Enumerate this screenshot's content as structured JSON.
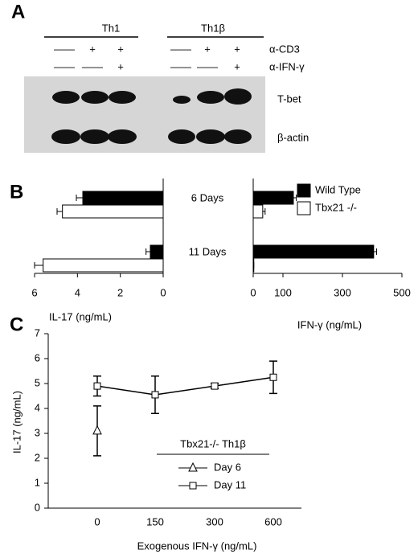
{
  "panel_labels": [
    "A",
    "B",
    "C"
  ],
  "blot": {
    "groups": [
      "Th1",
      "Th1β"
    ],
    "rows": [
      {
        "label": "α-CD3",
        "marks": [
          "——",
          "+",
          "+",
          "——",
          "+",
          "+"
        ]
      },
      {
        "label": "α-IFN-γ",
        "marks": [
          "——",
          "——",
          "+",
          "——",
          "——",
          "+"
        ]
      }
    ],
    "bands": [
      "T-bet",
      "β-actin"
    ]
  },
  "chart_data": [
    {
      "type": "paired-bar",
      "categories": [
        "6 Days",
        "11 Days"
      ],
      "xlabel": "IL-17 (ng/mL)",
      "xlim": [
        6,
        0
      ],
      "xticks": [
        6,
        4,
        2,
        0
      ],
      "x2label": "IFN-γ (ng/mL)",
      "x2lim": [
        0,
        500
      ],
      "x2ticks": [
        0,
        100,
        300,
        500
      ],
      "series": [
        {
          "name": "Wild Type",
          "color": "#000000",
          "values": [
            3.75,
            0.6
          ],
          "errors": [
            0.3,
            0.2
          ],
          "values2": [
            135,
            405
          ],
          "errors2": [
            10,
            10
          ]
        },
        {
          "name": "Tbx21 -/-",
          "color": "#ffffff",
          "values": [
            4.7,
            5.6
          ],
          "errors": [
            0.25,
            0.4
          ],
          "values2": [
            32,
            2
          ],
          "errors2": [
            8,
            0
          ]
        }
      ]
    },
    {
      "type": "line",
      "xlabel": "Exogenous IFN-γ (ng/mL)",
      "ylabel": "IL-17 (ng/mL)",
      "categories": [
        "0",
        "150",
        "300",
        "600"
      ],
      "ylim": [
        0,
        7
      ],
      "yticks": [
        0,
        1,
        2,
        3,
        4,
        5,
        6,
        7
      ],
      "legend_title": "Tbx21-/- Th1β",
      "series": [
        {
          "name": "Day 6",
          "color": "#000000",
          "marker": "triangle",
          "values": [
            3.1,
            null,
            null,
            null
          ],
          "errors": [
            1.0,
            null,
            null,
            null
          ]
        },
        {
          "name": "Day 11",
          "color": "#000000",
          "marker": "square",
          "values": [
            4.9,
            4.55,
            4.9,
            5.25
          ],
          "errors": [
            0.4,
            0.75,
            0.1,
            0.65
          ]
        }
      ]
    }
  ]
}
